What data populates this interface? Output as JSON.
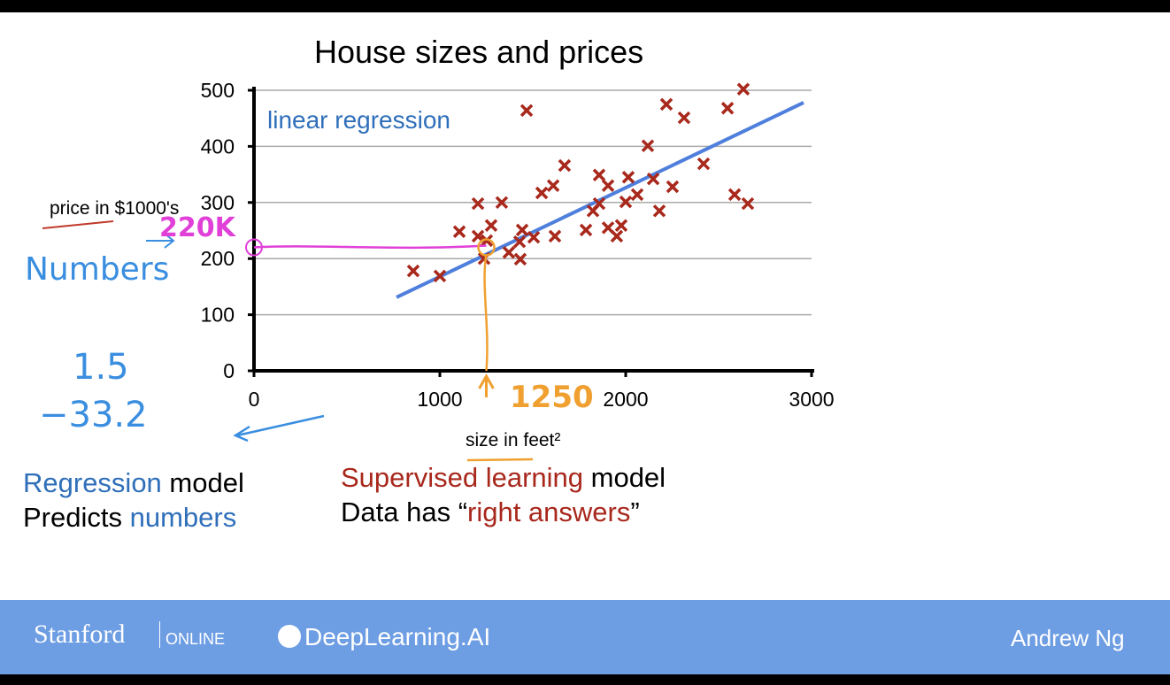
{
  "chart_data": {
    "type": "scatter",
    "title": "House sizes and prices",
    "xlabel": "size in feet²",
    "ylabel": "price in $1000's",
    "xlim": [
      0,
      3000
    ],
    "ylim": [
      0,
      500
    ],
    "xticks": [
      "0",
      "1000",
      "2000",
      "3000"
    ],
    "yticks": [
      "0",
      "100",
      "200",
      "300",
      "400",
      "500"
    ],
    "grid": true,
    "series": [
      {
        "name": "houses",
        "marker": "x",
        "color": "#a8281c",
        "points": [
          [
            857,
            178
          ],
          [
            1000,
            169
          ],
          [
            1105,
            248
          ],
          [
            1205,
            298
          ],
          [
            1333,
            300
          ],
          [
            1205,
            240
          ],
          [
            1276,
            259
          ],
          [
            1252,
            232
          ],
          [
            1238,
            200
          ],
          [
            1467,
            464
          ],
          [
            1443,
            251
          ],
          [
            1429,
            230
          ],
          [
            1505,
            238
          ],
          [
            1433,
            199
          ],
          [
            1371,
            211
          ],
          [
            1619,
            240
          ],
          [
            1548,
            317
          ],
          [
            1610,
            330
          ],
          [
            1671,
            366
          ],
          [
            1786,
            251
          ],
          [
            1857,
            349
          ],
          [
            1905,
            330
          ],
          [
            2014,
            345
          ],
          [
            2148,
            342
          ],
          [
            2062,
            314
          ],
          [
            2000,
            301
          ],
          [
            1857,
            298
          ],
          [
            1824,
            285
          ],
          [
            1905,
            255
          ],
          [
            1976,
            259
          ],
          [
            1952,
            240
          ],
          [
            2181,
            285
          ],
          [
            2252,
            328
          ],
          [
            2119,
            401
          ],
          [
            2419,
            369
          ],
          [
            2219,
            475
          ],
          [
            2314,
            451
          ],
          [
            2548,
            468
          ],
          [
            2633,
            502
          ],
          [
            2586,
            314
          ],
          [
            2657,
            298
          ]
        ]
      }
    ],
    "fit_line": {
      "label": "linear regression",
      "color": "#4f7fdc",
      "from": [
        767,
        131
      ],
      "to": [
        2957,
        478
      ]
    },
    "annotations": {
      "price_label": "220K",
      "size_label": "1250",
      "query_x": 1250,
      "query_y": 220
    }
  },
  "notes": {
    "numbers": "Numbers",
    "n1": "1.5",
    "n2": "−33.2"
  },
  "text": {
    "regression": "Regression",
    "model": " model",
    "predicts": "Predicts ",
    "numbers": "numbers",
    "supervised": "Supervised learning",
    "model2": " model",
    "datahas": "Data has “",
    "right": "right answers",
    "close": "”"
  },
  "footer": {
    "stanford": "Stanford",
    "online": "ONLINE",
    "deeplearning": "DeepLearning.AI",
    "author": "Andrew Ng"
  },
  "colors": {
    "accent_blue": "#2f6fba",
    "accent_red": "#a8281c",
    "footer": "#6d9de3"
  }
}
